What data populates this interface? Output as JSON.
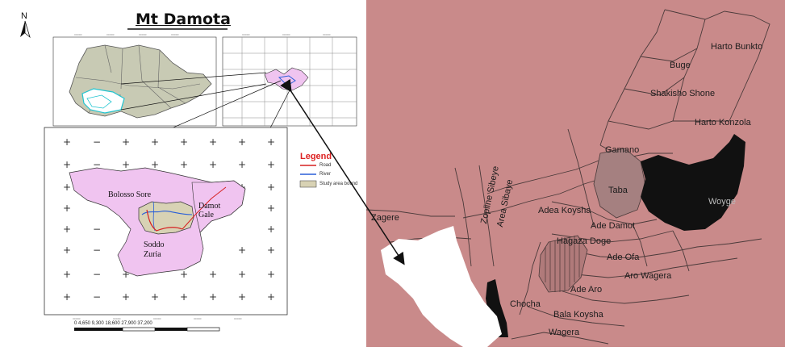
{
  "left_map": {
    "title": "Mt Damota",
    "north_label": "N",
    "legend": {
      "title": "Legend",
      "items": [
        {
          "label": "Road",
          "color": "#d62020"
        },
        {
          "label": "River",
          "color": "#2a5fd8"
        },
        {
          "label": "Study area bound",
          "color": "#d8d2b4"
        }
      ]
    },
    "regions": {
      "bolosso": "Bolosso Sore",
      "damot_line1": "Damot",
      "damot_line2": "Gale",
      "soddo_line1": "Soddo",
      "soddo_line2": "Zuria"
    },
    "scale_bar_text": "0  4,650 9,300   18,600   27,900   37,200"
  },
  "right_map": {
    "districts": [
      {
        "key": "harto_bunkto",
        "label": "Harto Bunkto"
      },
      {
        "key": "buge",
        "label": "Buge"
      },
      {
        "key": "shakisho",
        "label": "Shakisho Shone"
      },
      {
        "key": "harto_konzola",
        "label": "Harto Konzola"
      },
      {
        "key": "gamano",
        "label": "Gamano"
      },
      {
        "key": "taba",
        "label": "Taba"
      },
      {
        "key": "woyge",
        "label": "Woyge"
      },
      {
        "key": "adea_koysha",
        "label": "Adea Koysha"
      },
      {
        "key": "ade_damot",
        "label": "Ade Damot"
      },
      {
        "key": "hagaza_doge",
        "label": "Hagaza Doge"
      },
      {
        "key": "ade_ofa",
        "label": "Ade Ofa"
      },
      {
        "key": "aro_wagera",
        "label": "Aro Wagera"
      },
      {
        "key": "ade_aro",
        "label": "Ade Aro"
      },
      {
        "key": "bala_koysha",
        "label": "Bala Koysha"
      },
      {
        "key": "chocha",
        "label": "Chocha"
      },
      {
        "key": "zagere",
        "label": "Zagere"
      },
      {
        "key": "zopline",
        "label": "Zopline Sibeye"
      },
      {
        "key": "area_sibaye",
        "label": "Area Sibaye"
      },
      {
        "key": "wagera",
        "label": "Wagera"
      }
    ]
  },
  "colors": {
    "right_background": "#c98a8a",
    "ethiopia_fill": "#c8cab4",
    "study_fill": "#f0c4f0",
    "highlight_fill": "#111111"
  }
}
